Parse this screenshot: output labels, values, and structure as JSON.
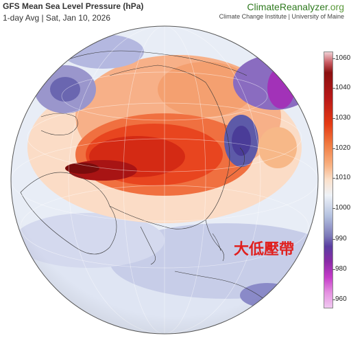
{
  "header": {
    "title": "GFS Mean Sea Level Pressure (hPa)",
    "subtitle": "1-day Avg | Sat, Jan 10, 2026"
  },
  "brand": {
    "name_part1": "Climate",
    "name_part2": "Reanalyzer",
    "name_part3": ".org",
    "tagline": "Climate Change Institute | University of Maine"
  },
  "colorbar": {
    "labels": [
      "1060",
      "1040",
      "1030",
      "1020",
      "1010",
      "1000",
      "990",
      "980",
      "960"
    ],
    "colors": {
      "high": "#8b1010",
      "mid_high": "#f07a40",
      "neutral": "#eef2f8",
      "low": "#5a3ea0",
      "very_low": "#c43ac8"
    }
  },
  "annotation": {
    "text": "大低壓帶",
    "color": "#e0201e"
  }
}
